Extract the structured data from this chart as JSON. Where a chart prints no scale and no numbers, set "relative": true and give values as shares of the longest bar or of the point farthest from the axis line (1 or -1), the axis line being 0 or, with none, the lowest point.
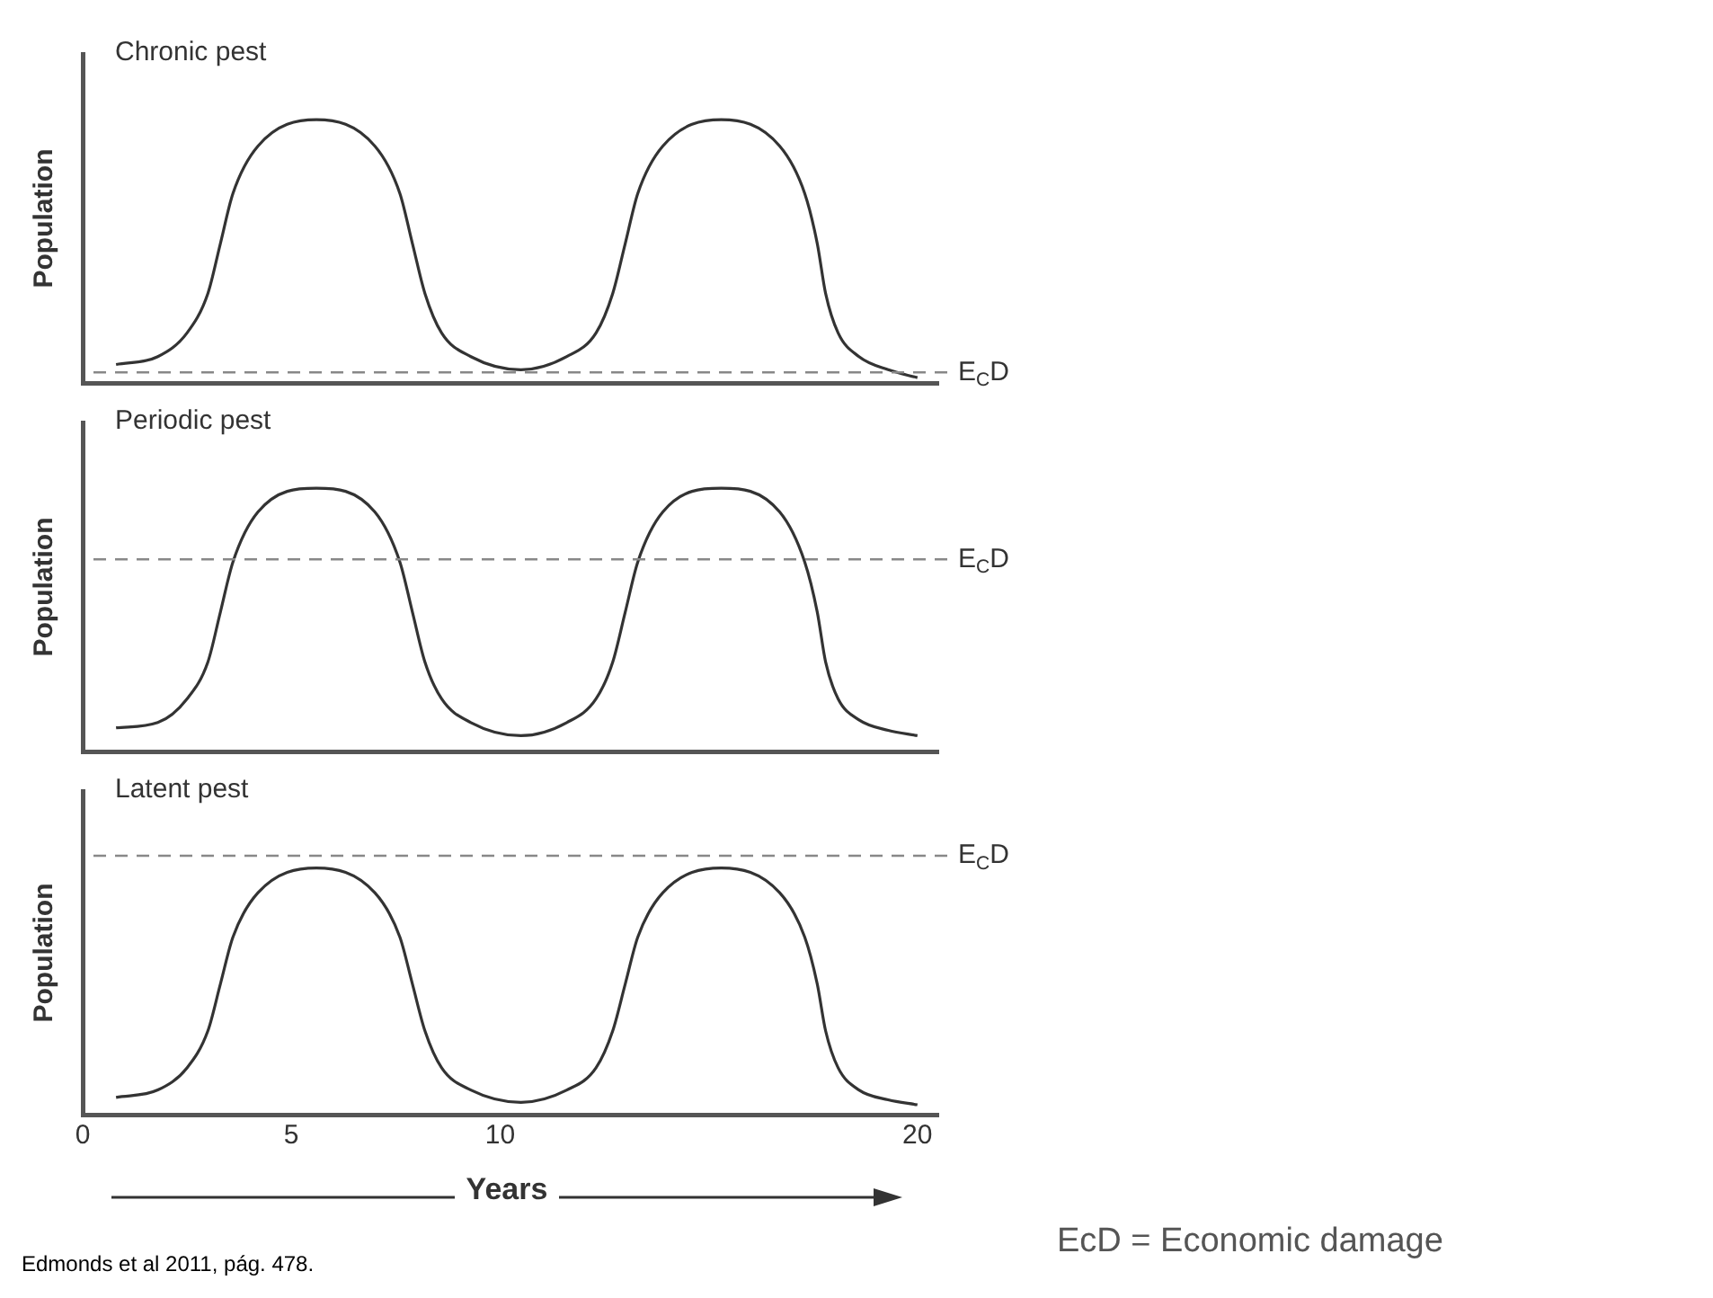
{
  "chart_data": [
    {
      "type": "line",
      "title": "Chronic pest",
      "ylabel": "Population",
      "relative": true,
      "xlim": [
        0,
        20.5
      ],
      "tick_labels": false,
      "marker": "none",
      "legend": false,
      "x": [
        0.8,
        1.8,
        2.5,
        3.0,
        3.3,
        3.6,
        4.2,
        5.6,
        7.0,
        7.6,
        7.9,
        8.2,
        8.6,
        9.3,
        10.5,
        11.6,
        12.3,
        12.7,
        13.0,
        13.3,
        13.9,
        15.3,
        16.7,
        17.3,
        17.6,
        17.8,
        18.1,
        18.6,
        19.3,
        20.0
      ],
      "series": [
        {
          "color": "#333333",
          "values": [
            0.07,
            0.1,
            0.19,
            0.34,
            0.53,
            0.72,
            0.9,
            1,
            0.9,
            0.72,
            0.53,
            0.34,
            0.19,
            0.1,
            0.05,
            0.1,
            0.19,
            0.34,
            0.53,
            0.72,
            0.9,
            1,
            0.9,
            0.72,
            0.53,
            0.34,
            0.19,
            0.1,
            0.05,
            0.02
          ]
        }
      ],
      "ref_lines": [
        {
          "axis": "y",
          "value": 0.04,
          "label": "E$_{C}$D",
          "color": "#888888",
          "line_style": "dashed"
        }
      ]
    },
    {
      "type": "line",
      "title": "Periodic pest",
      "ylabel": "Population",
      "relative": true,
      "xlim": [
        0,
        20.5
      ],
      "tick_labels": false,
      "marker": "none",
      "legend": false,
      "x": [
        0.8,
        1.8,
        2.5,
        3.0,
        3.3,
        3.6,
        4.2,
        5.6,
        7.0,
        7.6,
        7.9,
        8.2,
        8.6,
        9.3,
        10.5,
        11.6,
        12.3,
        12.7,
        13.0,
        13.3,
        13.9,
        15.3,
        16.7,
        17.3,
        17.6,
        17.8,
        18.1,
        18.6,
        19.3,
        20.0
      ],
      "series": [
        {
          "color": "#333333",
          "values": [
            0.09,
            0.11,
            0.2,
            0.34,
            0.53,
            0.72,
            0.91,
            1,
            0.91,
            0.72,
            0.53,
            0.34,
            0.2,
            0.11,
            0.06,
            0.11,
            0.2,
            0.34,
            0.53,
            0.72,
            0.91,
            1,
            0.91,
            0.72,
            0.53,
            0.34,
            0.2,
            0.12,
            0.08,
            0.06
          ]
        }
      ],
      "ref_lines": [
        {
          "axis": "y",
          "value": 0.73,
          "label": "E$_{C}$D",
          "color": "#888888",
          "line_style": "dashed"
        }
      ]
    },
    {
      "type": "line",
      "title": "Latent pest",
      "ylabel": "Population",
      "xlabel": "Years",
      "relative": true,
      "xlim": [
        0,
        20.5
      ],
      "xticks": [
        0,
        5,
        10,
        20
      ],
      "tick_labels": "x",
      "marker": "none",
      "legend": false,
      "x": [
        0.8,
        1.8,
        2.5,
        3.0,
        3.3,
        3.6,
        4.2,
        5.6,
        7.0,
        7.6,
        7.9,
        8.2,
        8.6,
        9.3,
        10.5,
        11.6,
        12.3,
        12.7,
        13.0,
        13.3,
        13.9,
        15.3,
        16.7,
        17.3,
        17.6,
        17.8,
        18.1,
        18.6,
        19.3,
        20.0
      ],
      "series": [
        {
          "color": "#333333",
          "values": [
            0.07,
            0.1,
            0.19,
            0.34,
            0.53,
            0.72,
            0.9,
            1,
            0.9,
            0.72,
            0.53,
            0.34,
            0.19,
            0.1,
            0.05,
            0.1,
            0.19,
            0.34,
            0.53,
            0.72,
            0.9,
            1,
            0.9,
            0.72,
            0.53,
            0.34,
            0.19,
            0.1,
            0.06,
            0.04
          ]
        }
      ],
      "ref_lines": [
        {
          "axis": "y",
          "value": 1.05,
          "label": "E$_{C}$D",
          "color": "#888888",
          "line_style": "dashed"
        }
      ],
      "annotations": [
        "Edmonds et al  2011, pág. 478.",
        "EcD = Economic damage"
      ]
    }
  ]
}
